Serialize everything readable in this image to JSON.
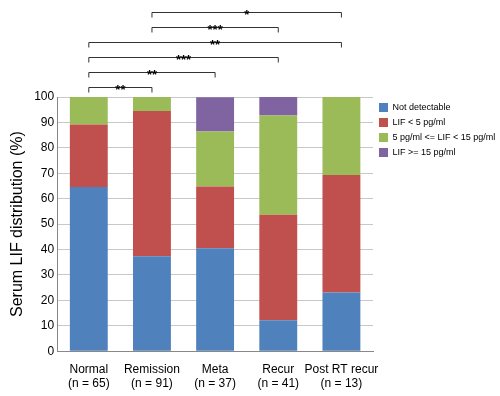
{
  "chart_data": {
    "type": "bar",
    "stacked": true,
    "categories": [
      "Normal\n(n = 65)",
      "Remission\n(n = 91)",
      "Meta\n(n = 37)",
      "Recur\n(n = 41)",
      "Post RT recur\n(n = 13)"
    ],
    "series": [
      {
        "name": "Not detectable",
        "color": "#4f81bd",
        "values": [
          64.6,
          37.4,
          40.5,
          12.2,
          23.1
        ]
      },
      {
        "name": "LIF < 5 pg/ml",
        "color": "#c0504d",
        "values": [
          24.6,
          57.1,
          24.3,
          41.5,
          46.2
        ]
      },
      {
        "name": "5 pg/ml <= LIF < 15 pg/ml",
        "color": "#9bbb59",
        "values": [
          10.8,
          5.5,
          21.6,
          39.0,
          30.7
        ]
      },
      {
        "name": "LIF >= 15 pg/ml",
        "color": "#8064a2",
        "values": [
          0,
          0,
          13.5,
          7.3,
          0
        ]
      }
    ],
    "ylabel": "Serum LIF distribution (%)",
    "ylim": [
      0,
      100
    ],
    "yticks": [
      0,
      10,
      20,
      30,
      40,
      50,
      60,
      70,
      80,
      90,
      100
    ],
    "grid": true,
    "legend": "right",
    "annotations": [
      {
        "from": "Remission",
        "to": "Post RT recur",
        "label": "*"
      },
      {
        "from": "Remission",
        "to": "Recur",
        "label": "***"
      },
      {
        "from": "Normal",
        "to": "Post RT recur",
        "label": "**"
      },
      {
        "from": "Normal",
        "to": "Recur",
        "label": "***"
      },
      {
        "from": "Normal",
        "to": "Meta",
        "label": "**"
      },
      {
        "from": "Normal",
        "to": "Remission",
        "label": "**"
      }
    ]
  }
}
